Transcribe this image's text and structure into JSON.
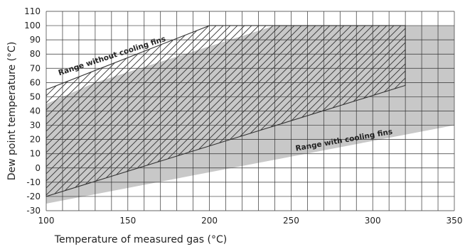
{
  "chart_data": {
    "type": "area",
    "title": "",
    "xlabel": "Temperature of measured gas (°C)",
    "ylabel": "Dew point temperature (°C)",
    "xlim": [
      100,
      350
    ],
    "ylim": [
      -30,
      110
    ],
    "x_ticks": [
      100,
      150,
      200,
      250,
      300,
      350
    ],
    "y_ticks": [
      -30,
      -20,
      -10,
      0,
      10,
      20,
      30,
      40,
      50,
      60,
      70,
      80,
      90,
      100,
      110
    ],
    "grid": true,
    "x_minor_step": 10,
    "series": [
      {
        "name": "Range with cooling fins",
        "fill": "gray",
        "x": [
          100,
          100,
          130,
          240,
          350,
          350
        ],
        "y": [
          -25,
          45,
          60,
          100,
          100,
          30
        ]
      },
      {
        "name": "Range without cooling fins",
        "fill": "hatched",
        "x": [
          100,
          100,
          200,
          320,
          320
        ],
        "y": [
          -20,
          55,
          100,
          100,
          58
        ]
      }
    ],
    "annotations": [
      {
        "text": "Range without cooling fins",
        "x": 108,
        "y": 65
      },
      {
        "text": "Range with cooling fins",
        "x": 253,
        "y": 12
      }
    ],
    "colors": {
      "gray_fill": "#c8c8c8",
      "hatch_line": "#333333",
      "grid": "#333333"
    }
  }
}
